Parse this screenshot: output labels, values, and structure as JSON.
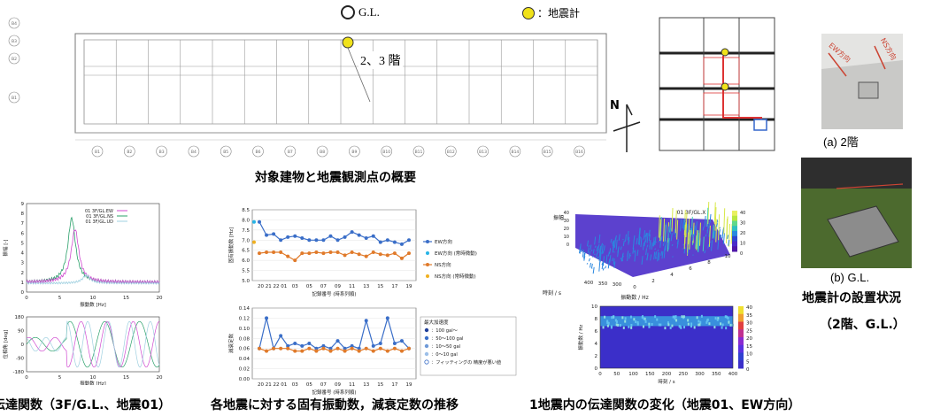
{
  "legend_top": {
    "gl_label": "G.L.",
    "seismo_label": "：地震計",
    "floor_label": "2、3 階"
  },
  "captions": {
    "building_overview": "対象建物と地震観測点の概要",
    "photo_a": "(a) 2階",
    "photo_b": "(b) G.L.",
    "installation": "地震計の設置状況",
    "installation_sub": "（2階、G.L.）",
    "transfer_left": "伝達関数（3F/G.L.、地震01）",
    "natural_freq": "各地震に対する固有振動数，減衰定数の推移",
    "single_eq": "1地震内の伝達関数の変化（地震01、EW方向）"
  },
  "photo_labels": {
    "ew": "EW方向",
    "ns": "NS方向"
  },
  "north_label": "N",
  "plan_markers": [
    "B1",
    "B2",
    "B3",
    "B4",
    "B5",
    "B6",
    "B7",
    "B8",
    "B9",
    "B10",
    "B11",
    "B12",
    "B13",
    "B14",
    "B15",
    "B16"
  ],
  "plan_rows": [
    "B4",
    "B3",
    "B2",
    "B1"
  ],
  "chart_data": [
    {
      "type": "line",
      "name": "transfer_amp",
      "legend": [
        "01 3F/GL.EW",
        "01 3F/GL.NS",
        "01 3F/GL.UD"
      ],
      "xlabel": "振動数 [Hz]",
      "ylabel": "振幅 [-]",
      "xticks": [
        "0",
        "5",
        "10",
        "15",
        "20"
      ],
      "yticks": [
        "0",
        "1",
        "2",
        "3",
        "4",
        "5",
        "6",
        "7",
        "8",
        "9"
      ],
      "xlim": [
        0,
        20
      ],
      "ylim": [
        0,
        9
      ],
      "colors": [
        "#d04ad0",
        "#2aa06a",
        "#9fd0e0"
      ]
    },
    {
      "type": "line",
      "name": "transfer_phase",
      "xlabel": "振動数 [Hz]",
      "ylabel": "位相角 [deg]",
      "xticks": [
        "0",
        "5",
        "10",
        "15",
        "20"
      ],
      "yticks": [
        "180",
        "90",
        "0",
        "-90",
        "-180"
      ],
      "xlim": [
        0,
        20
      ],
      "ylim": [
        -180,
        180
      ]
    },
    {
      "type": "line",
      "name": "natural_frequency",
      "xlabel": "記録番号 (時系列順)",
      "ylabel": "固有振動数 [Hz]",
      "categories": [
        "20",
        "21",
        "22",
        "01",
        "02",
        "03",
        "04",
        "05",
        "06",
        "07",
        "08",
        "09",
        "10",
        "11",
        "12",
        "13",
        "14",
        "15",
        "16",
        "17",
        "18",
        "19"
      ],
      "xtick_labels": [
        "20 21 22 01",
        "03",
        "05",
        "07",
        "09",
        "11",
        "13",
        "15",
        "17",
        "19"
      ],
      "yticks": [
        "8.5",
        "8.0",
        "7.5",
        "7.0",
        "6.5",
        "6.0",
        "5.5",
        "5.0"
      ],
      "ylim": [
        5.0,
        8.5
      ],
      "series": [
        {
          "name": "EW方向",
          "color": "#3a6ec8",
          "values": [
            7.9,
            7.25,
            7.3,
            7.0,
            7.15,
            7.2,
            7.1,
            7.0,
            7.0,
            7.0,
            7.2,
            7.0,
            7.15,
            7.4,
            7.25,
            7.1,
            7.2,
            6.9,
            7.0,
            6.9,
            6.8,
            7.0
          ]
        },
        {
          "name": "NS方向",
          "color": "#e07a2a",
          "values": [
            6.35,
            6.4,
            6.4,
            6.4,
            6.2,
            6.0,
            6.35,
            6.35,
            6.4,
            6.35,
            6.4,
            6.4,
            6.25,
            6.4,
            6.3,
            6.2,
            6.4,
            6.3,
            6.25,
            6.35,
            6.1,
            6.35
          ]
        }
      ],
      "markers": [
        {
          "name": "EW方向 (常時微動)",
          "color": "#27b4e6"
        },
        {
          "name": "NS方向 (常時微動)",
          "color": "#f0b020"
        }
      ]
    },
    {
      "type": "line",
      "name": "damping",
      "xlabel": "記録番号 (時系列順)",
      "ylabel": "減衰定数",
      "yticks": [
        "0.14",
        "0.12",
        "0.10",
        "0.08",
        "0.06",
        "0.04",
        "0.02",
        "0.00"
      ],
      "ylim": [
        0,
        0.14
      ],
      "series": [
        {
          "name": "EW",
          "color": "#3a6ec8",
          "values": [
            0.06,
            0.12,
            0.06,
            0.085,
            0.065,
            0.07,
            0.065,
            0.07,
            0.06,
            0.065,
            0.06,
            0.075,
            0.06,
            0.065,
            0.06,
            0.115,
            0.065,
            0.07,
            0.12,
            0.07,
            0.075,
            0.06
          ]
        },
        {
          "name": "NS",
          "color": "#e07a2a",
          "values": [
            0.06,
            0.055,
            0.06,
            0.06,
            0.06,
            0.055,
            0.055,
            0.06,
            0.055,
            0.06,
            0.055,
            0.06,
            0.055,
            0.06,
            0.055,
            0.06,
            0.055,
            0.06,
            0.055,
            0.06,
            0.055,
            0.06
          ]
        }
      ],
      "legend_title": "最大加速度",
      "legend": [
        "：100 gal～",
        "：50～100 gal",
        "：10～50 gal",
        "：0～10 gal",
        "：フィッティングの 精度が悪い値"
      ]
    },
    {
      "type": "surface",
      "name": "surface3d",
      "title": "01 3F/GL.X",
      "zlabel": "振幅",
      "xlabel": "振動数 / Hz",
      "ylabel": "時刻 / s",
      "xticks": [
        "0",
        "2",
        "4",
        "6",
        "8",
        "10"
      ],
      "yticks": [
        "400",
        "350",
        "300",
        "250",
        "200",
        "150",
        "100",
        "50",
        "0"
      ],
      "zticks": [
        "0",
        "10",
        "20",
        "30",
        "40"
      ],
      "colorbar": [
        "40",
        "35",
        "30",
        "25",
        "20",
        "15",
        "10",
        "5",
        "0"
      ]
    },
    {
      "type": "heatmap",
      "name": "spectrogram",
      "xlabel": "時刻 / s",
      "ylabel": "振動数 / Hz",
      "xticks": [
        "0",
        "50",
        "100",
        "150",
        "200",
        "250",
        "300",
        "350",
        "400"
      ],
      "yticks": [
        "10",
        "8",
        "6",
        "4",
        "2",
        "0"
      ],
      "colorbar": [
        "40",
        "35",
        "30",
        "25",
        "20",
        "15",
        "10",
        "5",
        "0"
      ]
    }
  ]
}
